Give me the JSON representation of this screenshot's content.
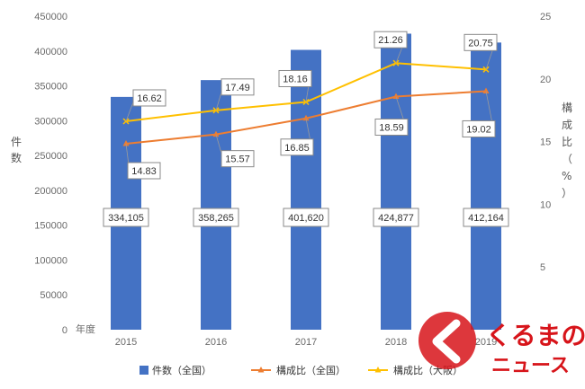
{
  "chart_data": {
    "type": "bar",
    "categories": [
      "2015",
      "2016",
      "2017",
      "2018",
      "2019"
    ],
    "series": [
      {
        "name": "件数（全国）",
        "kind": "bar",
        "axis": "left",
        "values": [
          334105,
          358265,
          401620,
          424877,
          412164
        ],
        "labels": [
          "334,105",
          "358,265",
          "401,620",
          "424,877",
          "412,164"
        ],
        "color": "#4472c4"
      },
      {
        "name": "構成比（全国）",
        "kind": "line",
        "axis": "right",
        "values": [
          14.83,
          15.57,
          16.85,
          18.59,
          19.02
        ],
        "color": "#ed7d31"
      },
      {
        "name": "構成比（大阪）",
        "kind": "line",
        "axis": "right",
        "values": [
          16.62,
          17.49,
          18.16,
          21.26,
          20.75
        ],
        "color": "#ffc000"
      }
    ],
    "ylabel_left": "件数",
    "ylabel_right": "構成比（%）",
    "x_axis_title": "年度",
    "ylim_left": [
      0,
      450000
    ],
    "yticks_left": [
      0,
      50000,
      100000,
      150000,
      200000,
      250000,
      300000,
      350000,
      400000,
      450000
    ],
    "ylim_right": [
      0,
      25
    ],
    "yticks_right": [
      5,
      10,
      15,
      20,
      25
    ],
    "grid": false,
    "legend_position": "bottom"
  },
  "logo": {
    "line1": "くるまの",
    "line2": "ニュース",
    "color": "#d7141a"
  }
}
